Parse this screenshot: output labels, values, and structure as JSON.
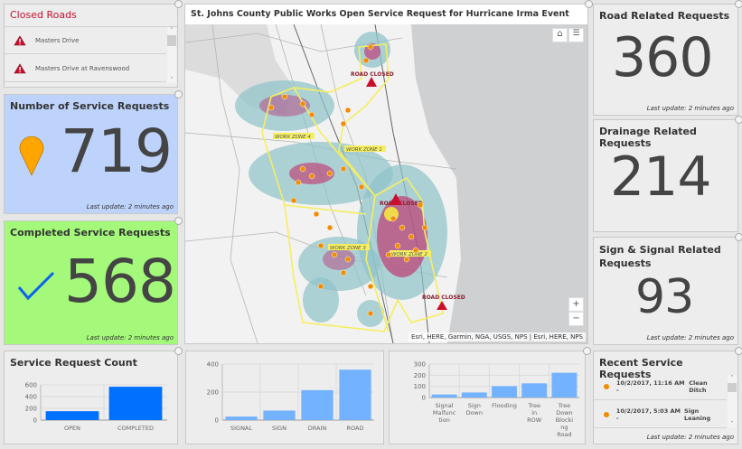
{
  "closed_roads": {
    "title": "Closed Roads",
    "items": [
      "Masters Drive",
      "Masters Drive at Ravenswood"
    ]
  },
  "service_requests": {
    "title": "Number of Service Requests",
    "value": "719",
    "update": "Last update: 2 minutes ago",
    "bg": "#bed3fc"
  },
  "completed": {
    "title": "Completed Service Requests",
    "value": "568",
    "update": "Last update: 2 minutes ago",
    "bg": "#a4f97a"
  },
  "map": {
    "title": "St. Johns County Public Works Open Service Request for Hurricane Irma Event",
    "labels": {
      "road_closed_1": "ROAD CLOSED",
      "road_closed_2": "ROAD CLOSED",
      "road_closed_3": "ROAD CLOSED",
      "zone1": "WORK ZONE 1",
      "zone2": "WORK ZONE 2",
      "zone3": "WORK ZONE 3",
      "zone4": "WORK ZONE 4"
    },
    "attribution": "Esri, HERE, Garmin, NGA, USGS, NPS | Esri, HERE, NPS",
    "zoom_in": "+",
    "zoom_out": "−"
  },
  "road": {
    "title": "Road Related Requests",
    "value": "360",
    "update": "Last update: 2 minutes ago"
  },
  "drainage": {
    "title": "Drainage Related Requests",
    "value": "214"
  },
  "sign": {
    "title": "Sign & Signal Related Requests",
    "value": "93",
    "update": "Last update: 2 minutes ago"
  },
  "recent": {
    "title": "Recent Service Requests",
    "items": [
      {
        "date": "10/2/2017, 11:16 AM - ",
        "type": "Clean Ditch"
      },
      {
        "date": "10/2/2017, 5:03 AM - ",
        "type": "Sign Leaning"
      }
    ],
    "update": "Last update: 2 minutes ago"
  },
  "chart_data": [
    {
      "type": "bar",
      "title": "Service Request Count",
      "categories": [
        "OPEN",
        "COMPLETED"
      ],
      "values": [
        151,
        568
      ],
      "ylim": [
        0,
        600
      ],
      "ticks": [
        0,
        200,
        400,
        600
      ],
      "color": "#0070ff"
    },
    {
      "type": "bar",
      "title": "",
      "categories": [
        "SIGNAL",
        "SIGN",
        "DRAIN",
        "ROAD"
      ],
      "values": [
        25,
        68,
        214,
        360
      ],
      "ylim": [
        0,
        400
      ],
      "ticks": [
        0,
        200,
        400
      ],
      "color": "#73b2ff"
    },
    {
      "type": "bar",
      "title": "",
      "categories": [
        "Signal Malfunction",
        "Sign Down",
        "Flooding",
        "Tree in ROW",
        "Tree Down Blocking Road"
      ],
      "category_lines": [
        [
          "Signal",
          "Malfunc",
          "tion"
        ],
        [
          "Sign",
          "Down"
        ],
        [
          "Flooding"
        ],
        [
          "Tree",
          "in",
          "ROW"
        ],
        [
          "Tree",
          "Down",
          "Blocki",
          "ng",
          "Road"
        ]
      ],
      "values": [
        27,
        45,
        102,
        127,
        222
      ],
      "ylim": [
        0,
        300
      ],
      "ticks": [
        0,
        100,
        200,
        300
      ],
      "color": "#73b2ff"
    }
  ]
}
